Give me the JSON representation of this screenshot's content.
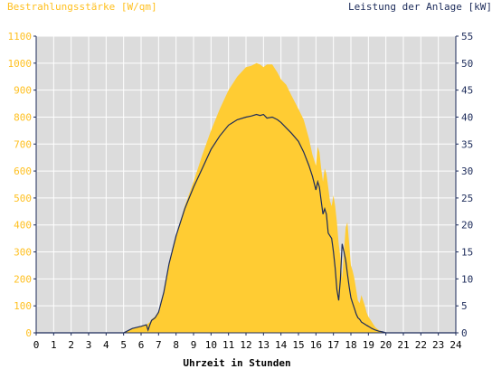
{
  "chart_data": {
    "type": "area",
    "ylabel_left": "Bestrahlungsstärke [W/qm]",
    "ylabel_right": "Leistung der Anlage [kW]",
    "xlabel": "Uhrzeit in Stunden",
    "xlim": [
      0,
      24
    ],
    "ylim_left": [
      0,
      1100
    ],
    "ylim_right": [
      0,
      55
    ],
    "x_ticks": [
      "0",
      "1",
      "2",
      "3",
      "4",
      "5",
      "6",
      "7",
      "8",
      "9",
      "10",
      "11",
      "12",
      "13",
      "14",
      "15",
      "16",
      "17",
      "18",
      "19",
      "20",
      "21",
      "22",
      "23",
      "24"
    ],
    "y_left_ticks": [
      "0",
      "100",
      "200",
      "300",
      "400",
      "500",
      "600",
      "700",
      "800",
      "900",
      "1000",
      "1100"
    ],
    "y_right_ticks": [
      "0",
      "5",
      "10",
      "15",
      "20",
      "25",
      "30",
      "35",
      "40",
      "45",
      "50",
      "55"
    ],
    "colors": {
      "plot_bg": "#dcdcdc",
      "irradiance": "#ffcc33",
      "left_axis_text": "#ffc020",
      "power_line": "#1c2b5a",
      "right_axis_text": "#1c2b5a",
      "grid": "#ffffff"
    },
    "series": [
      {
        "name": "Bestrahlungsstärke [W/qm]",
        "axis": "left",
        "style": "filled-area",
        "x": [
          0,
          5.0,
          5.5,
          6.0,
          6.3,
          6.5,
          6.6,
          6.8,
          7.0,
          7.3,
          7.6,
          8.0,
          8.5,
          9.0,
          9.5,
          10.0,
          10.5,
          11.0,
          11.5,
          12.0,
          12.3,
          12.6,
          12.8,
          13.0,
          13.2,
          13.5,
          13.8,
          14.0,
          14.3,
          14.6,
          15.0,
          15.3,
          15.6,
          15.8,
          16.0,
          16.1,
          16.2,
          16.3,
          16.4,
          16.5,
          16.6,
          16.7,
          16.8,
          16.9,
          17.0,
          17.1,
          17.2,
          17.3,
          17.4,
          17.5,
          17.6,
          17.7,
          17.8,
          17.9,
          18.0,
          18.1,
          18.2,
          18.3,
          18.4,
          18.5,
          18.6,
          18.7,
          18.8,
          18.9,
          19.0,
          19.1,
          19.2,
          19.3,
          19.4,
          19.5,
          19.6,
          19.8,
          20.0,
          20.2,
          20.4,
          20.5,
          21,
          24
        ],
        "values": [
          0,
          0,
          15,
          25,
          30,
          40,
          50,
          60,
          80,
          150,
          260,
          360,
          470,
          560,
          660,
          750,
          830,
          900,
          950,
          985,
          990,
          1000,
          995,
          985,
          995,
          995,
          965,
          940,
          920,
          880,
          830,
          790,
          720,
          660,
          620,
          690,
          670,
          610,
          560,
          610,
          590,
          540,
          490,
          470,
          510,
          470,
          410,
          330,
          280,
          200,
          300,
          390,
          410,
          330,
          250,
          230,
          200,
          160,
          120,
          110,
          140,
          120,
          100,
          75,
          60,
          50,
          40,
          30,
          20,
          15,
          10,
          5,
          0,
          0,
          0,
          0,
          0,
          0
        ]
      },
      {
        "name": "Leistung der Anlage [kW]",
        "axis": "right",
        "style": "line",
        "x": [
          0,
          5.0,
          5.5,
          6.0,
          6.3,
          6.4,
          6.5,
          6.6,
          6.8,
          7.0,
          7.3,
          7.6,
          8.0,
          8.5,
          9.0,
          9.5,
          10.0,
          10.5,
          11.0,
          11.5,
          12.0,
          12.3,
          12.6,
          12.8,
          13.0,
          13.2,
          13.5,
          13.8,
          14.0,
          14.3,
          14.6,
          15.0,
          15.3,
          15.6,
          15.8,
          16.0,
          16.1,
          16.2,
          16.3,
          16.4,
          16.5,
          16.6,
          16.7,
          16.8,
          16.9,
          17.0,
          17.1,
          17.2,
          17.3,
          17.4,
          17.5,
          17.6,
          17.7,
          17.8,
          17.9,
          18.0,
          18.1,
          18.2,
          18.3,
          18.4,
          18.5,
          18.6,
          18.7,
          18.8,
          18.9,
          19.0,
          19.2,
          19.4,
          19.6,
          19.8,
          20.0,
          20.2,
          20.4,
          21,
          24
        ],
        "values": [
          0,
          0,
          0.8,
          1.2,
          1.5,
          0.5,
          1.5,
          2.3,
          2.8,
          3.8,
          7.5,
          12.8,
          18.0,
          23.0,
          27.0,
          30.5,
          34.0,
          36.5,
          38.5,
          39.5,
          40.0,
          40.2,
          40.5,
          40.3,
          40.5,
          39.8,
          40.0,
          39.5,
          39.0,
          38.0,
          37.0,
          35.5,
          33.5,
          31.0,
          29.0,
          26.5,
          28.0,
          27.0,
          24.5,
          22.0,
          23.0,
          22.0,
          18.5,
          18.0,
          17.5,
          15.0,
          12.0,
          8.0,
          6.0,
          10.0,
          16.5,
          15.0,
          13.5,
          11.0,
          8.5,
          6.5,
          5.5,
          4.5,
          3.5,
          2.8,
          2.5,
          2.0,
          1.8,
          1.6,
          1.4,
          1.2,
          0.8,
          0.5,
          0.3,
          0.2,
          0,
          0,
          0,
          0,
          0
        ]
      }
    ]
  }
}
